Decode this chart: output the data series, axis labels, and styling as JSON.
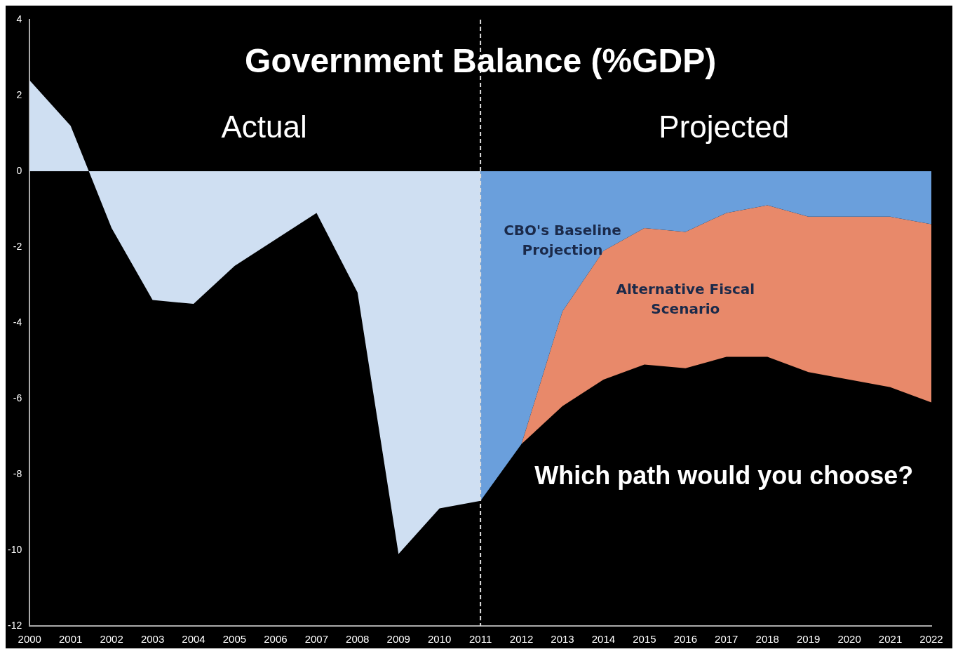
{
  "chart_data": {
    "type": "area",
    "title": "Government Balance (%GDP)",
    "x": [
      2000,
      2001,
      2002,
      2003,
      2004,
      2005,
      2006,
      2007,
      2008,
      2009,
      2010,
      2011
    ],
    "series": [
      {
        "color": "#cfdff2",
        "values": [
          2.4,
          1.2,
          -1.5,
          -3.4,
          -3.5,
          -2.5,
          -1.8,
          -1.1,
          -3.2,
          -10.1,
          -8.9,
          -8.7
        ]
      },
      {
        "name": "CBO's Baseline Projection",
        "color": "#6a9fdc",
        "x": [
          2011,
          2012,
          2013,
          2014,
          2015,
          2016,
          2017,
          2018,
          2019,
          2020,
          2021,
          2022
        ],
        "values": [
          -8.7,
          -7.2,
          -3.7,
          -2.1,
          -1.5,
          -1.6,
          -1.1,
          -0.9,
          -1.2,
          -1.2,
          -1.2,
          -1.4
        ]
      },
      {
        "name": "Alternative Fiscal Scenario",
        "color": "#e8896a",
        "x": [
          2011,
          2012,
          2013,
          2014,
          2015,
          2016,
          2017,
          2018,
          2019,
          2020,
          2021,
          2022
        ],
        "values": [
          -8.7,
          -7.2,
          -6.2,
          -5.5,
          -5.1,
          -5.2,
          -4.9,
          -4.9,
          -5.3,
          -5.5,
          -5.7,
          -6.1
        ]
      }
    ],
    "xlim": [
      2000,
      2022
    ],
    "xticks": [
      2000,
      2001,
      2002,
      2003,
      2004,
      2005,
      2006,
      2007,
      2008,
      2009,
      2010,
      2011,
      2012,
      2013,
      2014,
      2015,
      2016,
      2017,
      2018,
      2019,
      2020,
      2021,
      2022
    ],
    "ylim": [
      -12,
      4
    ],
    "yticks": [
      -12,
      -10,
      -8,
      -6,
      -4,
      -2,
      0,
      2,
      4
    ],
    "grid": false,
    "legend": false,
    "ref_lines": [
      {
        "axis": "x",
        "value": 2011,
        "color": "#dddddd",
        "line_style": "dashed"
      }
    ],
    "annotations": [
      "Actual",
      "Projected",
      "Which path would you choose?"
    ]
  }
}
